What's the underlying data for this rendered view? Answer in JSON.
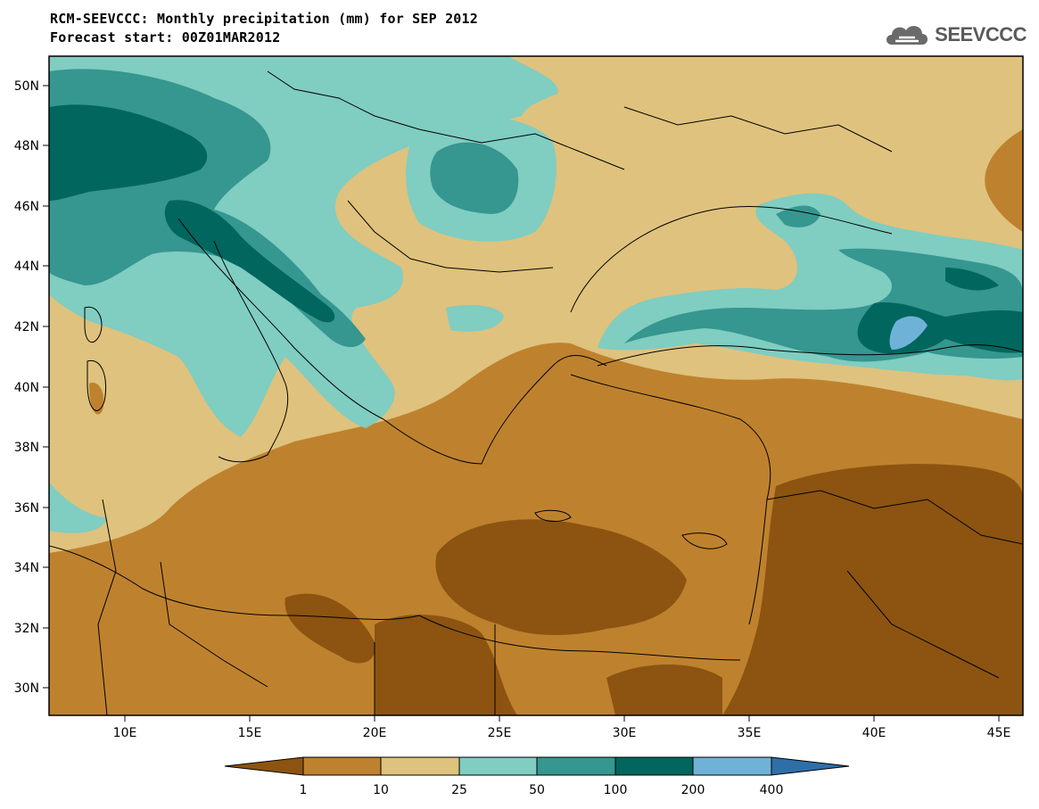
{
  "header": {
    "title_line1": "RCM-SEEVCCC: Monthly precipitation (mm) for SEP 2012",
    "title_line2": "Forecast start: 00Z01MAR2012",
    "logo_text": "SEEVCCC"
  },
  "map": {
    "lat_labels": [
      "50N",
      "48N",
      "46N",
      "44N",
      "42N",
      "40N",
      "38N",
      "36N",
      "34N",
      "32N",
      "30N"
    ],
    "lon_labels": [
      "10E",
      "15E",
      "20E",
      "25E",
      "30E",
      "35E",
      "40E",
      "45E"
    ]
  },
  "legend": {
    "ticks": [
      "1",
      "10",
      "25",
      "50",
      "100",
      "200",
      "400"
    ],
    "colors": [
      "#8c5410",
      "#be822e",
      "#dfc27d",
      "#80cdc1",
      "#35978f",
      "#01665e",
      "#6fb2d8",
      "#2f6fa8"
    ]
  }
}
